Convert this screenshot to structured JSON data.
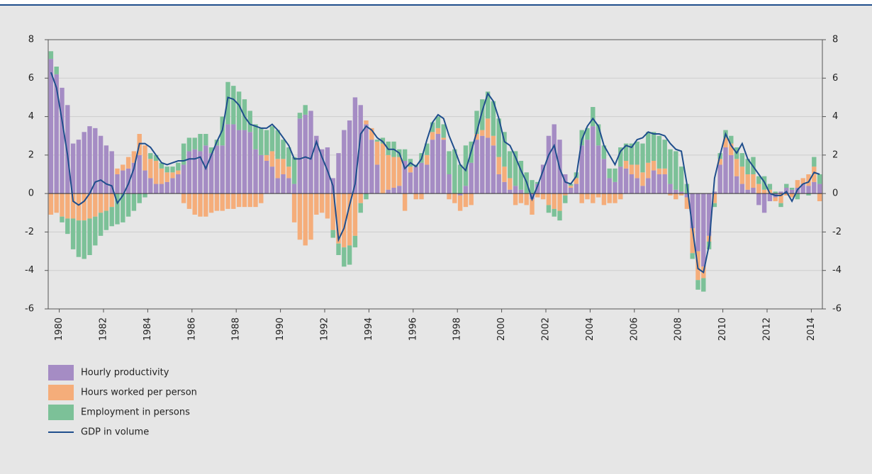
{
  "chart_data": {
    "type": "bar",
    "stacked": true,
    "x": [
      1980.125,
      1980.375,
      1980.625,
      1980.875,
      1981.125,
      1981.375,
      1981.625,
      1981.875,
      1982.125,
      1982.375,
      1982.625,
      1982.875,
      1983.125,
      1983.375,
      1983.625,
      1983.875,
      1984.125,
      1984.375,
      1984.625,
      1984.875,
      1985.125,
      1985.375,
      1985.625,
      1985.875,
      1986.125,
      1986.375,
      1986.625,
      1986.875,
      1987.125,
      1987.375,
      1987.625,
      1987.875,
      1988.125,
      1988.375,
      1988.625,
      1988.875,
      1989.125,
      1989.375,
      1989.625,
      1989.875,
      1990.125,
      1990.375,
      1990.625,
      1990.875,
      1991.125,
      1991.375,
      1991.625,
      1991.875,
      1992.125,
      1992.375,
      1992.625,
      1992.875,
      1993.125,
      1993.375,
      1993.625,
      1993.875,
      1994.125,
      1994.375,
      1994.625,
      1994.875,
      1995.125,
      1995.375,
      1995.625,
      1995.875,
      1996.125,
      1996.375,
      1996.625,
      1996.875,
      1997.125,
      1997.375,
      1997.625,
      1997.875,
      1998.125,
      1998.375,
      1998.625,
      1998.875,
      1999.125,
      1999.375,
      1999.625,
      1999.875,
      2000.125,
      2000.375,
      2000.625,
      2000.875,
      2001.125,
      2001.375,
      2001.625,
      2001.875,
      2002.125,
      2002.375,
      2002.625,
      2002.875,
      2003.125,
      2003.375,
      2003.625,
      2003.875,
      2004.125,
      2004.375,
      2004.625,
      2004.875,
      2005.125,
      2005.375,
      2005.625,
      2005.875,
      2006.125,
      2006.375,
      2006.625,
      2006.875,
      2007.125,
      2007.375,
      2007.625,
      2007.875,
      2008.125,
      2008.375,
      2008.625,
      2008.875,
      2009.125,
      2009.375,
      2009.625,
      2009.875,
      2010.125,
      2010.375,
      2010.625,
      2010.875,
      2011.125,
      2011.375,
      2011.625,
      2011.875,
      2012.125,
      2012.375,
      2012.625,
      2012.875,
      2013.125,
      2013.375,
      2013.625,
      2013.875,
      2014.125,
      2014.375,
      2014.625,
      2014.875
    ],
    "series": [
      {
        "name": "Hourly productivity",
        "color": "#a58cc4",
        "values": [
          7.0,
          6.2,
          5.5,
          4.6,
          2.6,
          2.8,
          3.2,
          3.5,
          3.4,
          3.0,
          2.5,
          2.2,
          1.0,
          1.2,
          1.3,
          1.6,
          2.0,
          1.2,
          0.8,
          0.5,
          0.5,
          0.6,
          0.8,
          1.0,
          1.5,
          2.2,
          2.3,
          2.2,
          2.5,
          2.1,
          2.5,
          2.5,
          3.6,
          3.6,
          3.3,
          3.3,
          3.2,
          2.3,
          2.0,
          1.7,
          1.4,
          0.8,
          1.0,
          0.8,
          0.5,
          3.9,
          4.1,
          4.3,
          3.0,
          2.3,
          2.4,
          0.8,
          2.1,
          3.3,
          3.8,
          5.0,
          4.6,
          3.6,
          2.8,
          1.5,
          0.0,
          0.2,
          0.3,
          0.4,
          1.7,
          1.1,
          1.4,
          1.6,
          1.5,
          2.8,
          3.1,
          2.8,
          1.0,
          0.0,
          -0.1,
          0.4,
          1.6,
          2.8,
          3.0,
          2.9,
          2.5,
          1.0,
          0.6,
          0.2,
          0.4,
          0.2,
          0.0,
          -0.3,
          0.5,
          1.5,
          3.0,
          3.6,
          2.8,
          1.0,
          0.3,
          0.5,
          2.5,
          2.8,
          3.5,
          2.5,
          1.8,
          0.8,
          0.6,
          1.4,
          1.3,
          1.0,
          0.8,
          0.4,
          0.8,
          1.2,
          1.0,
          1.0,
          0.5,
          0.2,
          0.1,
          -0.2,
          -1.8,
          -3.0,
          -3.8,
          -2.2,
          0.1,
          1.5,
          2.4,
          2.0,
          0.9,
          0.5,
          0.2,
          0.3,
          -0.6,
          -1.0,
          -0.4,
          -0.2,
          0.1,
          0.3,
          0.2,
          0.3,
          0.5,
          0.4,
          0.6,
          0.5
        ]
      },
      {
        "name": "Hours worked per person",
        "color": "#f5ad7a",
        "values": [
          -1.1,
          -1.0,
          -1.2,
          -1.3,
          -1.3,
          -1.4,
          -1.4,
          -1.3,
          -1.2,
          -1.0,
          -0.9,
          -0.7,
          0.3,
          0.3,
          0.6,
          0.6,
          1.1,
          1.3,
          1.0,
          1.2,
          0.8,
          0.5,
          0.3,
          0.2,
          -0.5,
          -0.8,
          -1.1,
          -1.2,
          -1.2,
          -1.0,
          -0.9,
          -0.9,
          -0.8,
          -0.8,
          -0.7,
          -0.7,
          -0.7,
          -0.7,
          -0.5,
          0.3,
          0.8,
          1.0,
          0.8,
          0.6,
          -1.5,
          -2.4,
          -2.7,
          -2.4,
          -1.1,
          -1.0,
          -1.3,
          -1.9,
          -2.6,
          -2.8,
          -2.7,
          -2.2,
          -0.5,
          0.2,
          0.6,
          1.2,
          2.6,
          1.8,
          1.6,
          1.5,
          -0.9,
          0.3,
          -0.3,
          -0.3,
          0.5,
          0.4,
          0.3,
          0.1,
          -0.3,
          -0.5,
          -0.8,
          -0.7,
          -0.6,
          0.3,
          0.3,
          1.0,
          0.5,
          0.9,
          0.8,
          0.6,
          -0.6,
          -0.5,
          -0.6,
          -0.8,
          -0.2,
          -0.3,
          -0.6,
          -0.8,
          -0.9,
          -0.1,
          0.1,
          0.3,
          -0.5,
          -0.3,
          -0.5,
          -0.2,
          -0.6,
          -0.5,
          -0.5,
          -0.3,
          0.4,
          0.5,
          0.7,
          0.7,
          0.8,
          0.5,
          0.3,
          0.3,
          -0.1,
          -0.3,
          -0.1,
          -0.6,
          -1.3,
          -1.5,
          -0.6,
          -0.3,
          -0.5,
          0.3,
          0.5,
          0.6,
          0.9,
          0.9,
          0.8,
          0.7,
          0.5,
          0.2,
          0.2,
          -0.2,
          -0.5,
          -0.1,
          -0.2,
          0.4,
          0.3,
          0.6,
          0.8,
          -0.4
        ]
      },
      {
        "name": "Employment in persons",
        "color": "#7cc198",
        "values": [
          0.4,
          0.4,
          -0.3,
          -0.8,
          -1.6,
          -1.9,
          -2.0,
          -1.9,
          -1.5,
          -1.2,
          -1.0,
          -1.0,
          -1.6,
          -1.5,
          -1.2,
          -0.9,
          -0.5,
          -0.2,
          0.3,
          0.3,
          0.3,
          0.3,
          0.3,
          0.4,
          1.1,
          0.7,
          0.6,
          0.9,
          0.6,
          0.3,
          0.3,
          1.5,
          2.2,
          2.0,
          2.0,
          1.6,
          1.1,
          1.3,
          1.4,
          1.3,
          1.3,
          1.5,
          1.0,
          1.0,
          1.4,
          0.3,
          0.5,
          0.0,
          0.0,
          0.0,
          0.0,
          -0.4,
          -0.6,
          -1.0,
          -1.0,
          -0.6,
          -0.5,
          -0.3,
          0.0,
          0.1,
          0.3,
          0.7,
          0.8,
          0.4,
          0.6,
          0.4,
          0.1,
          0.5,
          0.6,
          0.5,
          0.6,
          0.7,
          1.2,
          2.3,
          1.5,
          2.1,
          1.1,
          1.2,
          1.6,
          1.4,
          1.8,
          2.0,
          1.8,
          1.4,
          1.8,
          1.5,
          1.1,
          0.7,
          0.1,
          0.0,
          -0.4,
          -0.4,
          -0.5,
          -0.4,
          0.1,
          0.3,
          0.8,
          0.6,
          1.0,
          1.1,
          0.7,
          0.5,
          0.7,
          1.0,
          0.9,
          1.1,
          1.2,
          1.5,
          1.6,
          1.5,
          1.7,
          1.5,
          1.8,
          2.0,
          1.3,
          0.5,
          -0.3,
          -0.5,
          -0.7,
          -0.4,
          -0.2,
          0.3,
          0.4,
          0.4,
          0.6,
          0.7,
          0.8,
          0.9,
          0.4,
          0.7,
          0.3,
          0.1,
          -0.2,
          0.2,
          0.1,
          -0.3,
          0.0,
          -0.1,
          0.5,
          0.5
        ]
      },
      {
        "name": "GDP in volume",
        "color": "#1f4e8c",
        "type": "line",
        "values": [
          6.3,
          5.5,
          3.8,
          2.0,
          -0.4,
          -0.6,
          -0.4,
          0.0,
          0.6,
          0.7,
          0.5,
          0.4,
          -0.5,
          -0.1,
          0.5,
          1.3,
          2.6,
          2.6,
          2.4,
          2.0,
          1.6,
          1.5,
          1.6,
          1.7,
          1.7,
          1.8,
          1.8,
          1.9,
          1.3,
          2.0,
          2.7,
          3.3,
          5.0,
          4.9,
          4.6,
          4.0,
          3.6,
          3.5,
          3.4,
          3.4,
          3.6,
          3.3,
          2.9,
          2.5,
          1.8,
          1.8,
          1.9,
          1.8,
          2.7,
          1.9,
          1.2,
          0.4,
          -2.4,
          -1.8,
          -0.6,
          0.5,
          3.1,
          3.5,
          3.3,
          2.9,
          2.7,
          2.3,
          2.3,
          2.1,
          1.3,
          1.6,
          1.4,
          1.8,
          2.8,
          3.7,
          4.1,
          3.9,
          3.0,
          2.3,
          1.5,
          1.2,
          2.2,
          3.2,
          4.3,
          5.2,
          4.8,
          3.9,
          2.7,
          2.5,
          1.9,
          1.2,
          0.6,
          -0.3,
          0.4,
          1.2,
          2.0,
          2.5,
          1.3,
          0.6,
          0.5,
          0.9,
          2.8,
          3.5,
          3.9,
          3.5,
          2.5,
          2.0,
          1.5,
          2.2,
          2.5,
          2.4,
          2.8,
          2.9,
          3.2,
          3.1,
          3.1,
          3.0,
          2.6,
          2.3,
          2.2,
          0.5,
          -1.8,
          -3.9,
          -4.1,
          -2.7,
          0.8,
          2.0,
          3.1,
          2.5,
          2.1,
          2.6,
          1.8,
          1.4,
          1.0,
          0.6,
          0.0,
          -0.1,
          -0.1,
          0.1,
          -0.4,
          0.2,
          0.5,
          0.6,
          1.1,
          1.0
        ]
      }
    ],
    "xlim": [
      1980,
      2015
    ],
    "xticks": [
      {
        "value": 1980.5,
        "label": "1980"
      },
      {
        "value": 1982.5,
        "label": "1982"
      },
      {
        "value": 1984.5,
        "label": "1984"
      },
      {
        "value": 1986.5,
        "label": "1986"
      },
      {
        "value": 1988.5,
        "label": "1988"
      },
      {
        "value": 1990.5,
        "label": "1990"
      },
      {
        "value": 1992.5,
        "label": "1992"
      },
      {
        "value": 1994.5,
        "label": "1994"
      },
      {
        "value": 1996.5,
        "label": "1996"
      },
      {
        "value": 1998.5,
        "label": "1998"
      },
      {
        "value": 2000.5,
        "label": "2000"
      },
      {
        "value": 2002.5,
        "label": "2002"
      },
      {
        "value": 2004.5,
        "label": "2004"
      },
      {
        "value": 2006.5,
        "label": "2006"
      },
      {
        "value": 2008.5,
        "label": "2008"
      },
      {
        "value": 2010.5,
        "label": "2010"
      },
      {
        "value": 2012.5,
        "label": "2012"
      },
      {
        "value": 2014.5,
        "label": "2014"
      }
    ],
    "ylim": [
      -6,
      8
    ],
    "yticks": [
      -6,
      -4,
      -2,
      0,
      2,
      4,
      6,
      8
    ],
    "grid": true
  }
}
